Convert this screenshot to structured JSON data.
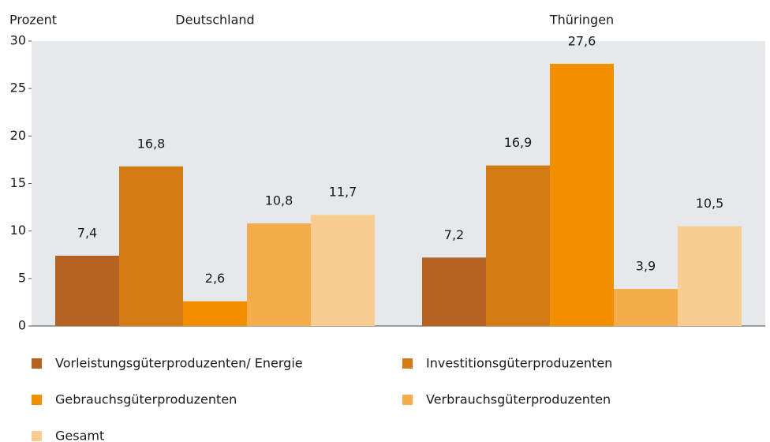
{
  "chart_data": {
    "type": "bar",
    "ylabel": "Prozent",
    "categories": [
      "Deutschland",
      "Thüringen"
    ],
    "series": [
      {
        "name": "Vorleistungsgüterproduzenten/ Energie",
        "color": "#b3621f",
        "values": [
          7.4,
          7.2
        ],
        "value_labels": [
          "7,4",
          "7,2"
        ]
      },
      {
        "name": "Investitionsgüterproduzenten",
        "color": "#d47a12",
        "values": [
          16.8,
          16.9
        ],
        "value_labels": [
          "16,8",
          "16,9"
        ]
      },
      {
        "name": "Gebrauchsgüterproduzenten",
        "color": "#f18f00",
        "values": [
          2.6,
          27.6
        ],
        "value_labels": [
          "2,6",
          "27,6"
        ]
      },
      {
        "name": "Verbrauchsgüterproduzenten",
        "color": "#f5ad4b",
        "values": [
          10.8,
          3.9
        ],
        "value_labels": [
          "10,8",
          "3,9"
        ]
      },
      {
        "name": "Gesamt",
        "color": "#f9cd8f",
        "values": [
          11.7,
          10.5
        ],
        "value_labels": [
          "11,7",
          "10,5"
        ]
      }
    ],
    "ylim": [
      0,
      30
    ],
    "yticks": [
      0,
      5,
      10,
      15,
      20,
      25,
      30
    ],
    "grid": false
  }
}
